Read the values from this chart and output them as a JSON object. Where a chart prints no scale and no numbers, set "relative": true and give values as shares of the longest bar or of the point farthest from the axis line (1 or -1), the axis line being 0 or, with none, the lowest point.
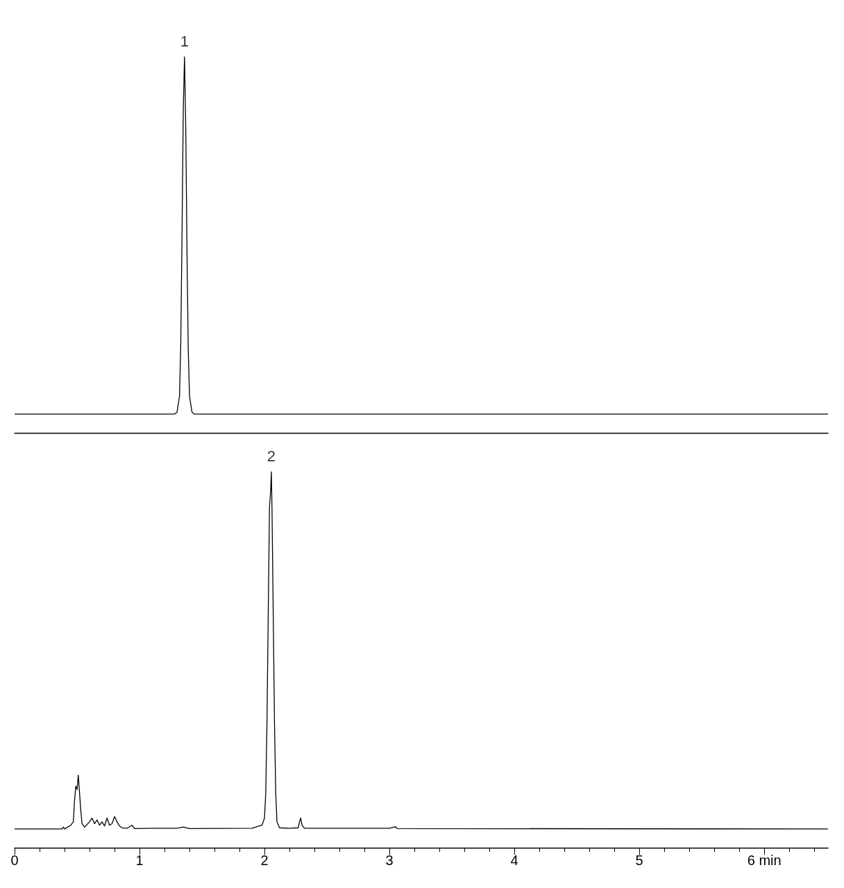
{
  "chart_data": [
    {
      "type": "line",
      "relative": true,
      "grid": false,
      "marker": "none",
      "xlim": [
        0,
        6.51
      ],
      "x": [
        0,
        1.28,
        1.3,
        1.32,
        1.33,
        1.34,
        1.35,
        1.36,
        1.37,
        1.38,
        1.39,
        1.4,
        1.42,
        1.44,
        6.51
      ],
      "series": [
        {
          "color": "#000000",
          "values": [
            0.05,
            0.05,
            0.055,
            0.098,
            0.24,
            0.525,
            0.858,
            1,
            0.81,
            0.478,
            0.221,
            0.098,
            0.055,
            0.05,
            0.05
          ]
        }
      ],
      "annotations": [
        {
          "text": "1",
          "x": 1.36,
          "y": 1
        }
      ]
    },
    {
      "type": "line",
      "relative": true,
      "grid": false,
      "marker": "none",
      "xlim": [
        0,
        6.51
      ],
      "xticks": [
        0,
        {
          "value": 0.2,
          "label": null
        },
        {
          "value": 0.4,
          "label": null
        },
        {
          "value": 0.6,
          "label": null
        },
        {
          "value": 0.8,
          "label": null
        },
        1,
        {
          "value": 1.2,
          "label": null
        },
        {
          "value": 1.4,
          "label": null
        },
        {
          "value": 1.6,
          "label": null
        },
        {
          "value": 1.8,
          "label": null
        },
        2,
        {
          "value": 2.2,
          "label": null
        },
        {
          "value": 2.4,
          "label": null
        },
        {
          "value": 2.6,
          "label": null
        },
        {
          "value": 2.8,
          "label": null
        },
        3,
        {
          "value": 3.2,
          "label": null
        },
        {
          "value": 3.4,
          "label": null
        },
        {
          "value": 3.6,
          "label": null
        },
        {
          "value": 3.8,
          "label": null
        },
        4,
        {
          "value": 4.2,
          "label": null
        },
        {
          "value": 4.4,
          "label": null
        },
        {
          "value": 4.6,
          "label": null
        },
        {
          "value": 4.8,
          "label": null
        },
        5,
        {
          "value": 5.2,
          "label": null
        },
        {
          "value": 5.4,
          "label": null
        },
        {
          "value": 5.6,
          "label": null
        },
        {
          "value": 5.8,
          "label": null
        },
        {
          "value": 6,
          "label": "6 min"
        },
        {
          "value": 6.2,
          "label": null
        },
        {
          "value": 6.4,
          "label": null
        }
      ],
      "x": [
        0,
        0.38,
        0.39,
        0.4,
        0.45,
        0.47,
        0.48,
        0.49,
        0.5,
        0.51,
        0.52,
        0.53,
        0.54,
        0.56,
        0.6,
        0.62,
        0.64,
        0.66,
        0.68,
        0.7,
        0.72,
        0.74,
        0.76,
        0.78,
        0.8,
        0.82,
        0.84,
        0.86,
        0.9,
        0.94,
        0.96,
        1.1,
        1.3,
        1.35,
        1.4,
        1.9,
        1.98,
        2.0,
        2.01,
        2.02,
        2.03,
        2.04,
        2.05,
        2.055,
        2.06,
        2.07,
        2.08,
        2.09,
        2.1,
        2.12,
        2.2,
        2.27,
        2.28,
        2.29,
        2.3,
        2.32,
        3.0,
        3.05,
        3.06,
        6.51
      ],
      "series": [
        {
          "color": "#000000",
          "values": [
            0.05,
            0.05,
            0.055,
            0.05,
            0.06,
            0.069,
            0.126,
            0.164,
            0.155,
            0.193,
            0.145,
            0.098,
            0.064,
            0.055,
            0.069,
            0.079,
            0.064,
            0.074,
            0.06,
            0.069,
            0.058,
            0.079,
            0.06,
            0.064,
            0.083,
            0.069,
            0.058,
            0.053,
            0.052,
            0.06,
            0.051,
            0.052,
            0.052,
            0.055,
            0.051,
            0.052,
            0.06,
            0.079,
            0.145,
            0.335,
            0.62,
            0.905,
            0.953,
            1,
            0.905,
            0.62,
            0.335,
            0.145,
            0.069,
            0.053,
            0.052,
            0.053,
            0.069,
            0.079,
            0.06,
            0.052,
            0.052,
            0.056,
            0.051,
            0.05
          ]
        }
      ],
      "annotations": [
        {
          "text": "2",
          "x": 2.055,
          "y": 1
        }
      ]
    }
  ]
}
